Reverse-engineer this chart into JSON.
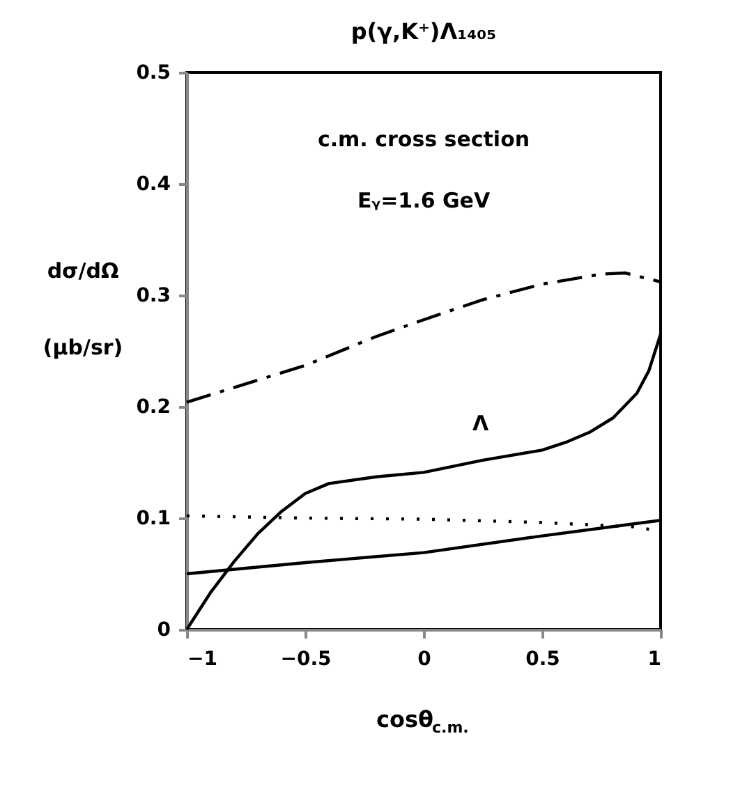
{
  "chart_data": {
    "type": "line",
    "title": "p(γ,K⁺)Λ₁₄₀₅",
    "xlabel": "cosθ$_{c.m.}$",
    "ylabel": "dσ/dΩ (μb/sr)",
    "xlim": [
      -1,
      1
    ],
    "ylim": [
      0,
      0.5
    ],
    "xticks": [
      -1,
      -0.5,
      0,
      0.5,
      1
    ],
    "yticks": [
      0,
      0.1,
      0.2,
      0.3,
      0.4,
      0.5
    ],
    "grid": false,
    "marker": "none",
    "annotations": [
      "c.m. cross section",
      "Eᵧ=1.6 GeV",
      "Λ"
    ],
    "series": [
      {
        "color": "#000000",
        "line_style": "dashed",
        "x": [
          -1,
          -0.5,
          -0.2,
          0,
          0.25,
          0.5,
          0.75,
          0.85,
          1
        ],
        "values": [
          0.204,
          0.237,
          0.263,
          0.278,
          0.296,
          0.31,
          0.319,
          0.32,
          0.312
        ]
      },
      {
        "color": "#000000",
        "line_style": "solid",
        "x": [
          -1,
          -0.9,
          -0.8,
          -0.7,
          -0.6,
          -0.5,
          -0.4,
          -0.2,
          0,
          0.25,
          0.5,
          0.6,
          0.7,
          0.8,
          0.9,
          0.95,
          1
        ],
        "values": [
          0,
          0.033,
          0.061,
          0.086,
          0.106,
          0.122,
          0.131,
          0.137,
          0.141,
          0.152,
          0.161,
          0.168,
          0.177,
          0.19,
          0.212,
          0.232,
          0.265
        ]
      },
      {
        "color": "#000000",
        "line_style": "dotted",
        "x": [
          -1,
          -0.5,
          0,
          0.5,
          0.9,
          1
        ],
        "values": [
          0.102,
          0.1,
          0.099,
          0.096,
          0.092,
          0.088
        ]
      },
      {
        "color": "#000000",
        "line_style": "solid",
        "x": [
          -1,
          -0.5,
          0,
          0.5,
          1
        ],
        "values": [
          0.05,
          0.06,
          0.069,
          0.084,
          0.098
        ]
      }
    ]
  }
}
